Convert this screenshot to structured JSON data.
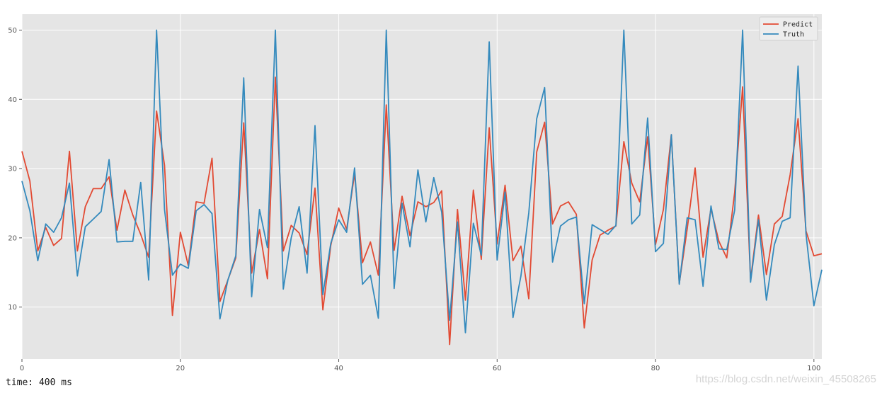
{
  "status": {
    "time": "time: 400 ms"
  },
  "watermark": "https://blog.csdn.net/weixin_45508265",
  "chart_data": {
    "type": "line",
    "xlabel": "",
    "ylabel": "",
    "xlim": [
      0,
      101
    ],
    "ylim": [
      2.5,
      52.3
    ],
    "xticks": [
      0,
      20,
      40,
      60,
      80,
      100
    ],
    "yticks": [
      10,
      20,
      30,
      40,
      50
    ],
    "grid": true,
    "legend": "top-right",
    "colors": {
      "background": "#e5e5e5",
      "grid": "#ffffff",
      "predict": "#e24a33",
      "truth": "#348abd"
    },
    "x": [
      0,
      1,
      2,
      3,
      4,
      5,
      6,
      7,
      8,
      9,
      10,
      11,
      12,
      13,
      14,
      15,
      16,
      17,
      18,
      19,
      20,
      21,
      22,
      23,
      24,
      25,
      26,
      27,
      28,
      29,
      30,
      31,
      32,
      33,
      34,
      35,
      36,
      37,
      38,
      39,
      40,
      41,
      42,
      43,
      44,
      45,
      46,
      47,
      48,
      49,
      50,
      51,
      52,
      53,
      54,
      55,
      56,
      57,
      58,
      59,
      60,
      61,
      62,
      63,
      64,
      65,
      66,
      67,
      68,
      69,
      70,
      71,
      72,
      73,
      74,
      75,
      76,
      77,
      78,
      79,
      80,
      81,
      82,
      83,
      84,
      85,
      86,
      87,
      88,
      89,
      90,
      91,
      92,
      93,
      94,
      95,
      96,
      97,
      98,
      99,
      100,
      101
    ],
    "series": [
      {
        "name": "Predict",
        "values": [
          32.5,
          28.2,
          18.1,
          21.5,
          18.9,
          19.9,
          32.5,
          18.1,
          24.5,
          27.1,
          27.1,
          28.8,
          21.1,
          26.9,
          23.3,
          20.5,
          17.2,
          38.3,
          30.5,
          8.8,
          20.8,
          16.0,
          25.2,
          25.0,
          31.5,
          10.8,
          13.9,
          17.1,
          36.6,
          14.9,
          21.2,
          14.1,
          43.2,
          18.1,
          21.8,
          20.7,
          17.6,
          27.2,
          9.6,
          18.9,
          24.3,
          21.2,
          29.3,
          16.4,
          19.4,
          14.6,
          39.2,
          18.2,
          26.0,
          20.3,
          25.2,
          24.5,
          25.1,
          26.8,
          4.6,
          24.1,
          11.0,
          26.9,
          16.9,
          35.9,
          19.1,
          27.6,
          16.7,
          18.8,
          11.2,
          32.4,
          36.7,
          22.0,
          24.6,
          25.2,
          23.4,
          7.0,
          16.8,
          20.4,
          21.1,
          21.7,
          33.9,
          27.9,
          25.2,
          34.6,
          19.0,
          24.1,
          34.9,
          13.4,
          21.3,
          30.1,
          17.2,
          24.2,
          19.5,
          17.1,
          26.6,
          41.8,
          13.9,
          23.3,
          14.7,
          22.0,
          23.1,
          29.1,
          37.2,
          21.0,
          17.4,
          17.7
        ]
      },
      {
        "name": "Truth",
        "values": [
          28.2,
          23.9,
          16.7,
          22.0,
          20.8,
          22.9,
          27.9,
          14.5,
          21.6,
          22.7,
          23.8,
          31.3,
          19.4,
          19.5,
          19.5,
          28.0,
          13.9,
          50.0,
          24.1,
          14.6,
          16.2,
          15.6,
          23.9,
          24.8,
          23.5,
          8.3,
          13.9,
          17.4,
          43.1,
          11.5,
          24.1,
          18.6,
          50.0,
          12.6,
          20.0,
          24.5,
          14.9,
          36.2,
          11.8,
          19.2,
          22.6,
          20.8,
          30.1,
          13.3,
          14.6,
          8.4,
          50.0,
          12.7,
          25.0,
          18.7,
          29.8,
          22.3,
          28.7,
          23.7,
          8.1,
          22.3,
          6.3,
          22.1,
          17.5,
          48.3,
          16.8,
          26.6,
          8.5,
          14.5,
          23.6,
          37.2,
          41.7,
          16.5,
          21.7,
          22.6,
          23.0,
          10.5,
          21.9,
          21.2,
          20.5,
          21.8,
          50.0,
          22.0,
          23.3,
          37.3,
          18.0,
          19.2,
          34.9,
          13.3,
          22.9,
          22.6,
          13.0,
          24.6,
          18.4,
          18.3,
          24.0,
          50.0,
          13.6,
          22.6,
          11.0,
          19.0,
          22.4,
          22.9,
          44.8,
          20.6,
          10.2,
          15.4
        ]
      }
    ]
  }
}
